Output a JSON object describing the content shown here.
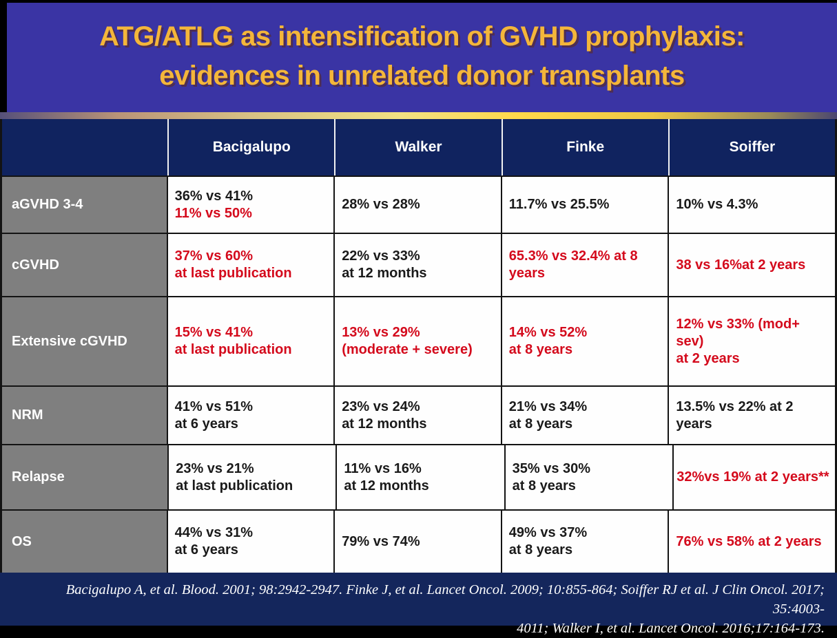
{
  "title": {
    "line1": "ATG/ATLG as intensification of GVHD prophylaxis:",
    "line2": "evidences in unrelated donor transplants"
  },
  "table": {
    "columns": [
      "",
      "Bacigalupo",
      "Walker",
      "Finke",
      "Soiffer"
    ],
    "rows": [
      {
        "label": "aGVHD 3-4",
        "cells": [
          {
            "lines": [
              {
                "text": "36% vs 41%",
                "color": "black"
              },
              {
                "text": "11% vs 50%",
                "color": "red"
              }
            ]
          },
          {
            "lines": [
              {
                "text": "28% vs 28%",
                "color": "black"
              }
            ]
          },
          {
            "lines": [
              {
                "text": "11.7% vs 25.5%",
                "color": "black"
              }
            ]
          },
          {
            "lines": [
              {
                "text": "10% vs 4.3%",
                "color": "black"
              }
            ]
          }
        ]
      },
      {
        "label": "cGVHD",
        "cells": [
          {
            "lines": [
              {
                "text": "37% vs 60%",
                "color": "red"
              },
              {
                "text": "at last publication",
                "color": "red"
              }
            ]
          },
          {
            "lines": [
              {
                "text": "22% vs 33%",
                "color": "black"
              },
              {
                "text": "at 12 months",
                "color": "black"
              }
            ]
          },
          {
            "lines": [
              {
                "text": "65.3% vs 32.4% at 8",
                "color": "red"
              },
              {
                "text": "years",
                "color": "red"
              }
            ]
          },
          {
            "lines": [
              {
                "text": "38 vs 16%at 2 years",
                "color": "red"
              }
            ]
          }
        ]
      },
      {
        "label": "Extensive cGVHD",
        "cells": [
          {
            "lines": [
              {
                "text": "15% vs 41%",
                "color": "red"
              },
              {
                "text": "at last publication",
                "color": "red"
              }
            ]
          },
          {
            "lines": [
              {
                "text": "13% vs 29%",
                "color": "red"
              },
              {
                "text": "(moderate + severe)",
                "color": "red"
              }
            ]
          },
          {
            "lines": [
              {
                "text": "14% vs 52%",
                "color": "red"
              },
              {
                "text": "at 8 years",
                "color": "red"
              }
            ]
          },
          {
            "lines": [
              {
                "text": "12% vs 33% (mod+ sev)",
                "color": "red"
              },
              {
                "text": "at 2 years",
                "color": "red"
              }
            ]
          }
        ]
      },
      {
        "label": "NRM",
        "cells": [
          {
            "lines": [
              {
                "text": "41% vs 51%",
                "color": "black"
              },
              {
                "text": "at 6 years",
                "color": "black"
              }
            ]
          },
          {
            "lines": [
              {
                "text": "23% vs 24%",
                "color": "black"
              },
              {
                "text": "at 12 months",
                "color": "black"
              }
            ]
          },
          {
            "lines": [
              {
                "text": "21% vs 34%",
                "color": "black"
              },
              {
                "text": "at 8 years",
                "color": "black"
              }
            ]
          },
          {
            "lines": [
              {
                "text": "13.5% vs 22% at 2 years",
                "color": "black"
              }
            ]
          }
        ]
      },
      {
        "label": "Relapse",
        "cells": [
          {
            "lines": [
              {
                "text": "23% vs 21%",
                "color": "black"
              },
              {
                "text": "at last publication",
                "color": "black"
              }
            ]
          },
          {
            "lines": [
              {
                "text": "11% vs 16%",
                "color": "black"
              },
              {
                "text": "at 12 months",
                "color": "black"
              }
            ]
          },
          {
            "lines": [
              {
                "text": "35% vs 30%",
                "color": "black"
              },
              {
                "text": "at 8 years",
                "color": "black"
              }
            ]
          },
          {
            "lines": [
              {
                "text": "32%vs 19% at 2 years**",
                "color": "red"
              }
            ],
            "align": "center"
          }
        ]
      },
      {
        "label": "OS",
        "cells": [
          {
            "lines": [
              {
                "text": "44% vs 31%",
                "color": "black"
              },
              {
                "text": "at 6 years",
                "color": "black"
              }
            ]
          },
          {
            "lines": [
              {
                "text": "79% vs 74%",
                "color": "black"
              }
            ]
          },
          {
            "lines": [
              {
                "text": "49% vs 37%",
                "color": "black"
              },
              {
                "text": "at 8 years",
                "color": "black"
              }
            ]
          },
          {
            "lines": [
              {
                "text": "76% vs 58% at 2 years",
                "color": "red"
              }
            ]
          }
        ]
      }
    ]
  },
  "footer": {
    "line1": "Bacigalupo A, et al. Blood. 2001; 98:2942-2947.  Finke J, et al. Lancet Oncol. 2009; 10:855-864; Soiffer RJ et al. J Clin Oncol. 2017; 35:4003-",
    "line2": "4011; Walker I, et al.  Lancet Oncol. 2016;17:164-173."
  },
  "colors": {
    "title_bg": "#3A34A4",
    "title_text": "#F4B63A",
    "header_bg": "#10235F",
    "footer_bg": "#14265C",
    "label_bg": "#7F7F7F",
    "red": "#D40A1C",
    "black_text": "#1A1A1A"
  }
}
